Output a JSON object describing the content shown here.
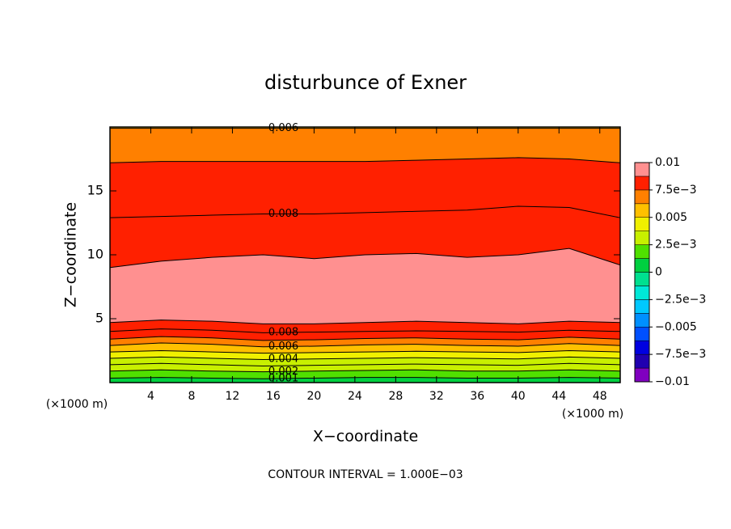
{
  "chart_data": {
    "type": "contour",
    "title": "disturbunce of Exner",
    "x_label": "X−coordinate",
    "y_label": "Z−coordinate",
    "x_unit": "(×1000 m)",
    "footnote": "CONTOUR INTERVAL = 1.000E−03",
    "xlim": [
      0,
      50
    ],
    "ylim": [
      0,
      20
    ],
    "xticks": [
      4,
      8,
      12,
      16,
      20,
      24,
      28,
      32,
      36,
      40,
      44,
      48
    ],
    "yticks": [
      5,
      10,
      15
    ],
    "x": [
      0,
      5,
      10,
      15,
      20,
      25,
      30,
      35,
      40,
      45,
      50
    ],
    "contours": [
      {
        "level": 0.001,
        "labeled": true,
        "z": [
          0.35,
          0.4,
          0.35,
          0.3,
          0.35,
          0.4,
          0.4,
          0.35,
          0.35,
          0.4,
          0.35
        ]
      },
      {
        "level": 0.002,
        "labeled": true,
        "z": [
          0.9,
          1.0,
          0.9,
          0.85,
          0.9,
          0.95,
          1.0,
          0.9,
          0.9,
          1.0,
          0.9
        ]
      },
      {
        "level": 0.003,
        "labeled": false,
        "z": [
          1.4,
          1.5,
          1.4,
          1.3,
          1.35,
          1.4,
          1.45,
          1.4,
          1.35,
          1.5,
          1.4
        ]
      },
      {
        "level": 0.004,
        "labeled": true,
        "z": [
          1.9,
          2.0,
          1.9,
          1.8,
          1.85,
          1.9,
          1.95,
          1.9,
          1.85,
          2.0,
          1.9
        ]
      },
      {
        "level": 0.005,
        "labeled": false,
        "z": [
          2.4,
          2.5,
          2.4,
          2.3,
          2.35,
          2.4,
          2.45,
          2.4,
          2.35,
          2.5,
          2.4
        ]
      },
      {
        "level": 0.006,
        "labeled": true,
        "z": [
          2.9,
          3.1,
          3.0,
          2.8,
          2.85,
          2.95,
          3.0,
          2.9,
          2.85,
          3.05,
          2.9
        ]
      },
      {
        "level": 0.007,
        "labeled": false,
        "z": [
          3.4,
          3.6,
          3.5,
          3.3,
          3.35,
          3.45,
          3.5,
          3.4,
          3.35,
          3.55,
          3.4
        ]
      },
      {
        "level": 0.008,
        "labeled": true,
        "z": [
          4.0,
          4.2,
          4.1,
          3.9,
          3.95,
          4.0,
          4.05,
          4.0,
          3.95,
          4.1,
          4.0
        ]
      },
      {
        "level": 0.009,
        "labeled": false,
        "z": [
          4.7,
          4.9,
          4.8,
          4.6,
          4.6,
          4.7,
          4.8,
          4.7,
          4.6,
          4.8,
          4.7
        ]
      },
      {
        "level": 0.009,
        "labeled": false,
        "z": [
          9.0,
          9.5,
          9.8,
          10.0,
          9.7,
          10.0,
          10.1,
          9.8,
          10.0,
          10.5,
          9.2
        ]
      },
      {
        "level": 0.008,
        "labeled": true,
        "z": [
          12.9,
          13.0,
          13.1,
          13.2,
          13.2,
          13.3,
          13.4,
          13.5,
          13.8,
          13.7,
          12.9
        ]
      },
      {
        "level": 0.007,
        "labeled": false,
        "z": [
          17.2,
          17.3,
          17.3,
          17.3,
          17.3,
          17.3,
          17.4,
          17.5,
          17.6,
          17.5,
          17.2
        ]
      },
      {
        "level": 0.006,
        "labeled": true,
        "z": [
          19.9,
          19.9,
          19.9,
          19.9,
          19.9,
          19.9,
          19.9,
          19.9,
          19.9,
          19.9,
          19.9
        ]
      }
    ],
    "colorbar": {
      "clim": [
        -0.01,
        0.01
      ],
      "colors": [
        "#8000c0",
        "#2000b0",
        "#0000e0",
        "#0050ff",
        "#0090ff",
        "#00c8ff",
        "#00e8d8",
        "#00e090",
        "#00d040",
        "#50e000",
        "#c8f000",
        "#f0f000",
        "#ffc000",
        "#ff8000",
        "#ff2000",
        "#ff9090"
      ],
      "ticks": [
        0.01,
        {
          "value": 0.0075,
          "label": "7.5e−3"
        },
        0.005,
        {
          "value": 0.0025,
          "label": "2.5e−3"
        },
        0,
        {
          "value": -0.0025,
          "label": "−2.5e−3"
        },
        {
          "value": -0.005,
          "label": "−0.005"
        },
        {
          "value": -0.0075,
          "label": "−7.5e−3"
        },
        {
          "value": -0.01,
          "label": "−0.01"
        }
      ]
    }
  }
}
